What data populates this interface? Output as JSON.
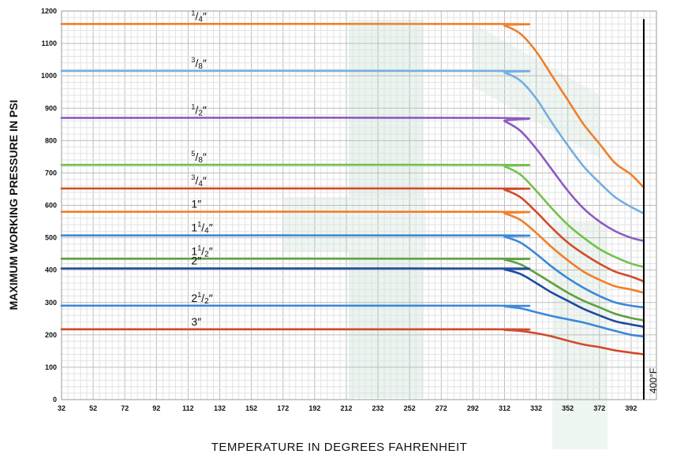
{
  "chart_data": {
    "type": "line",
    "xlabel": "TEMPERATURE IN DEGREES FAHRENHEIT",
    "ylabel": "MAXIMUM WORKING PRESSURE IN PSI",
    "xlim": [
      32,
      408
    ],
    "ylim": [
      0,
      1200
    ],
    "x_ticks": [
      "32",
      "52",
      "72",
      "92",
      "112",
      "132",
      "152",
      "172",
      "192",
      "212",
      "232",
      "252",
      "272",
      "292",
      "312",
      "332",
      "352",
      "372",
      "392"
    ],
    "y_ticks": [
      "0",
      "100",
      "200",
      "300",
      "400",
      "500",
      "600",
      "700",
      "800",
      "900",
      "1000",
      "1100",
      "1200"
    ],
    "grid": true,
    "marker": {
      "x": 400,
      "label": "400°F"
    },
    "series": [
      {
        "whole": "",
        "num": "1",
        "den": "4",
        "color": "#f07f2a",
        "label_x": 112,
        "x": [
          32,
          306,
          312,
          322,
          332,
          342,
          352,
          362,
          372,
          382,
          392,
          400
        ],
        "y": [
          1160,
          1160,
          1155,
          1130,
          1075,
          1000,
          925,
          850,
          790,
          730,
          695,
          655
        ]
      },
      {
        "whole": "",
        "num": "3",
        "den": "8",
        "color": "#74aee2",
        "label_x": 112,
        "x": [
          32,
          306,
          312,
          322,
          332,
          342,
          352,
          362,
          372,
          382,
          392,
          400
        ],
        "y": [
          1015,
          1015,
          1010,
          985,
          930,
          855,
          785,
          720,
          670,
          625,
          595,
          575
        ]
      },
      {
        "whole": "",
        "num": "1",
        "den": "2",
        "color": "#8a5cc0",
        "label_x": 112,
        "x": [
          32,
          306,
          312,
          322,
          332,
          342,
          352,
          362,
          372,
          382,
          392,
          400
        ],
        "y": [
          870,
          870,
          860,
          830,
          775,
          710,
          645,
          590,
          550,
          520,
          500,
          490
        ]
      },
      {
        "whole": "",
        "num": "5",
        "den": "8",
        "color": "#72c14a",
        "label_x": 112,
        "x": [
          32,
          306,
          312,
          322,
          332,
          342,
          352,
          362,
          372,
          382,
          392,
          400
        ],
        "y": [
          725,
          725,
          720,
          695,
          645,
          590,
          540,
          500,
          465,
          440,
          420,
          410
        ]
      },
      {
        "whole": "",
        "num": "3",
        "den": "4",
        "color": "#d24a2a",
        "label_x": 112,
        "x": [
          32,
          306,
          312,
          322,
          332,
          342,
          352,
          362,
          372,
          382,
          392,
          400
        ],
        "y": [
          652,
          652,
          648,
          625,
          580,
          530,
          485,
          450,
          420,
          395,
          380,
          365
        ]
      },
      {
        "whole": "1",
        "num": "",
        "den": "",
        "color": "#f07f2a",
        "label_x": 112,
        "x": [
          32,
          306,
          312,
          322,
          332,
          342,
          352,
          362,
          372,
          382,
          392,
          400
        ],
        "y": [
          580,
          580,
          575,
          555,
          515,
          470,
          430,
          395,
          370,
          350,
          340,
          330
        ]
      },
      {
        "whole": "1",
        "num": "1",
        "den": "4",
        "color": "#3a88d8",
        "label_x": 112,
        "x": [
          32,
          306,
          312,
          322,
          332,
          342,
          352,
          362,
          372,
          382,
          392,
          400
        ],
        "y": [
          507,
          507,
          503,
          485,
          450,
          410,
          375,
          345,
          320,
          300,
          290,
          285
        ]
      },
      {
        "whole": "1",
        "num": "1",
        "den": "2",
        "color": "#5ea040",
        "label_x": 112,
        "x": [
          32,
          306,
          312,
          322,
          332,
          342,
          352,
          362,
          372,
          382,
          392,
          400
        ],
        "y": [
          435,
          435,
          432,
          418,
          390,
          360,
          330,
          305,
          285,
          265,
          252,
          245
        ]
      },
      {
        "whole": "2",
        "num": "",
        "den": "",
        "color": "#1d4aa0",
        "label_x": 112,
        "x": [
          32,
          306,
          312,
          322,
          332,
          342,
          352,
          362,
          372,
          382,
          392,
          400
        ],
        "y": [
          405,
          405,
          402,
          388,
          360,
          330,
          305,
          280,
          260,
          242,
          232,
          225
        ]
      },
      {
        "whole": "2",
        "num": "1",
        "den": "2",
        "color": "#3a88d8",
        "label_x": 112,
        "x": [
          32,
          306,
          312,
          322,
          332,
          342,
          352,
          362,
          372,
          382,
          392,
          400
        ],
        "y": [
          290,
          290,
          288,
          282,
          270,
          258,
          248,
          238,
          225,
          212,
          200,
          195
        ]
      },
      {
        "whole": "3",
        "num": "",
        "den": "",
        "color": "#d24a2a",
        "label_x": 112,
        "x": [
          32,
          306,
          312,
          322,
          332,
          342,
          352,
          362,
          372,
          382,
          392,
          400
        ],
        "y": [
          217,
          217,
          215,
          212,
          205,
          195,
          182,
          170,
          162,
          152,
          145,
          140
        ]
      }
    ]
  }
}
